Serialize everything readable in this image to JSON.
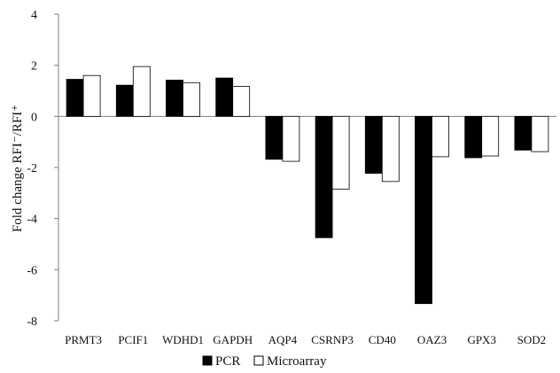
{
  "chart_data": {
    "type": "bar",
    "categories": [
      "PRMT3",
      "PCIF1",
      "WDHD1",
      "GAPDH",
      "AQP4",
      "CSRNP3",
      "CD40",
      "OAZ3",
      "GPX3",
      "SOD2"
    ],
    "series": [
      {
        "name": "PCR",
        "values": [
          1.45,
          1.22,
          1.42,
          1.5,
          -1.68,
          -4.75,
          -2.23,
          -7.33,
          -1.62,
          -1.32
        ],
        "color": "#000000"
      },
      {
        "name": "Microarray",
        "values": [
          1.6,
          1.95,
          1.32,
          1.17,
          -1.76,
          -2.85,
          -2.55,
          -1.58,
          -1.55,
          -1.38
        ],
        "color": "#ffffff"
      }
    ],
    "ylabel": "Fold change RFI⁻/RFI⁺",
    "xlabel": "",
    "ylim": [
      -8,
      4
    ],
    "yticks": [
      4,
      2,
      0,
      -2,
      -4,
      -6,
      -8
    ],
    "grid": false,
    "legend_position": "bottom-center"
  }
}
